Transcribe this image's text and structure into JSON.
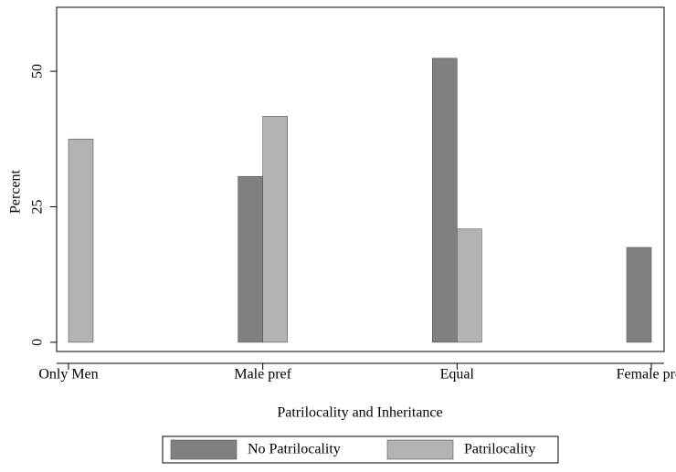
{
  "chart_data": {
    "type": "bar",
    "x_label": "Patrilocality and Inheritance",
    "y_label": "Percent",
    "categories": [
      "Only Men",
      "Male pref",
      "Equal",
      "Female pref"
    ],
    "series": [
      {
        "name": "No Patrilocality",
        "color": "#808080",
        "values": [
          null,
          30.6,
          52.4,
          17.5
        ]
      },
      {
        "name": "Patrilocality",
        "color": "#b3b3b3",
        "values": [
          37.5,
          41.7,
          20.9,
          null
        ]
      }
    ],
    "ylim": [
      -1.7,
      61.8
    ],
    "yticks": [
      0,
      25,
      50
    ],
    "grid": false
  }
}
